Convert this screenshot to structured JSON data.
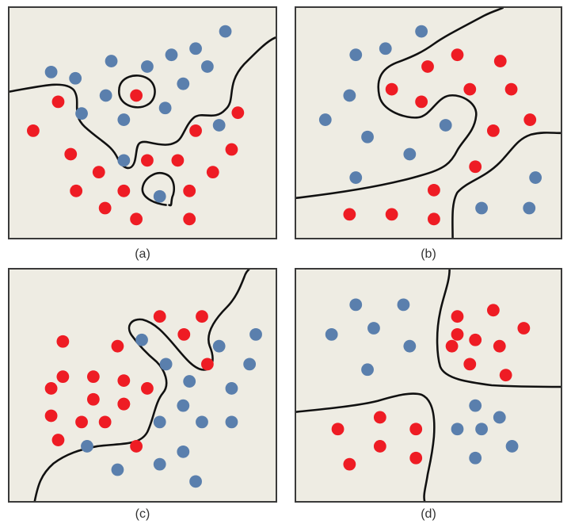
{
  "colors": {
    "red": "#ee1c24",
    "blue": "#5a7fad",
    "background": "#eeece3",
    "border": "#3a3a3a"
  },
  "panels": [
    {
      "caption": "(a)",
      "red": [
        [
          62,
          120
        ],
        [
          162,
          112
        ],
        [
          292,
          134
        ],
        [
          30,
          157
        ],
        [
          238,
          157
        ],
        [
          78,
          187
        ],
        [
          176,
          195
        ],
        [
          215,
          195
        ],
        [
          284,
          181
        ],
        [
          114,
          210
        ],
        [
          260,
          210
        ],
        [
          85,
          234
        ],
        [
          146,
          234
        ],
        [
          230,
          234
        ],
        [
          122,
          256
        ],
        [
          162,
          270
        ],
        [
          230,
          270
        ]
      ],
      "blue": [
        [
          276,
          30
        ],
        [
          130,
          68
        ],
        [
          176,
          75
        ],
        [
          207,
          60
        ],
        [
          238,
          52
        ],
        [
          253,
          75
        ],
        [
          53,
          82
        ],
        [
          84,
          90
        ],
        [
          123,
          112
        ],
        [
          222,
          97
        ],
        [
          199,
          128
        ],
        [
          92,
          135
        ],
        [
          146,
          143
        ],
        [
          268,
          150
        ],
        [
          146,
          195
        ],
        [
          192,
          241
        ]
      ]
    },
    {
      "caption": "(b)",
      "red": [
        [
          206,
          60
        ],
        [
          168,
          75
        ],
        [
          261,
          68
        ],
        [
          122,
          104
        ],
        [
          222,
          104
        ],
        [
          275,
          104
        ],
        [
          160,
          120
        ],
        [
          299,
          143
        ],
        [
          252,
          157
        ],
        [
          229,
          203
        ],
        [
          176,
          233
        ],
        [
          68,
          264
        ],
        [
          122,
          264
        ],
        [
          176,
          270
        ]
      ],
      "blue": [
        [
          160,
          30
        ],
        [
          76,
          60
        ],
        [
          114,
          52
        ],
        [
          68,
          112
        ],
        [
          37,
          143
        ],
        [
          191,
          150
        ],
        [
          91,
          165
        ],
        [
          145,
          187
        ],
        [
          76,
          217
        ],
        [
          306,
          217
        ],
        [
          237,
          256
        ],
        [
          298,
          256
        ]
      ]
    },
    {
      "caption": "(c)",
      "red": [
        [
          192,
          60
        ],
        [
          246,
          60
        ],
        [
          68,
          92
        ],
        [
          138,
          98
        ],
        [
          223,
          83
        ],
        [
          253,
          121
        ],
        [
          68,
          137
        ],
        [
          107,
          137
        ],
        [
          146,
          142
        ],
        [
          53,
          152
        ],
        [
          107,
          166
        ],
        [
          146,
          172
        ],
        [
          176,
          152
        ],
        [
          53,
          187
        ],
        [
          92,
          195
        ],
        [
          122,
          195
        ],
        [
          146,
          172
        ],
        [
          62,
          218
        ],
        [
          162,
          226
        ]
      ],
      "blue": [
        [
          169,
          90
        ],
        [
          315,
          83
        ],
        [
          268,
          98
        ],
        [
          200,
          121
        ],
        [
          307,
          121
        ],
        [
          230,
          143
        ],
        [
          284,
          152
        ],
        [
          222,
          174
        ],
        [
          192,
          195
        ],
        [
          246,
          195
        ],
        [
          284,
          195
        ],
        [
          99,
          226
        ],
        [
          222,
          233
        ],
        [
          192,
          249
        ],
        [
          138,
          256
        ],
        [
          238,
          271
        ]
      ]
    },
    {
      "caption": "(d)",
      "red": [
        [
          206,
          60
        ],
        [
          252,
          52
        ],
        [
          291,
          75
        ],
        [
          206,
          83
        ],
        [
          229,
          90
        ],
        [
          199,
          98
        ],
        [
          260,
          98
        ],
        [
          222,
          121
        ],
        [
          268,
          135
        ],
        [
          53,
          204
        ],
        [
          107,
          189
        ],
        [
          153,
          204
        ],
        [
          107,
          226
        ],
        [
          68,
          249
        ],
        [
          153,
          241
        ]
      ],
      "blue": [
        [
          76,
          45
        ],
        [
          137,
          45
        ],
        [
          99,
          75
        ],
        [
          45,
          83
        ],
        [
          145,
          98
        ],
        [
          91,
          128
        ],
        [
          229,
          174
        ],
        [
          260,
          189
        ],
        [
          206,
          204
        ],
        [
          237,
          204
        ],
        [
          229,
          241
        ],
        [
          276,
          226
        ]
      ]
    }
  ]
}
